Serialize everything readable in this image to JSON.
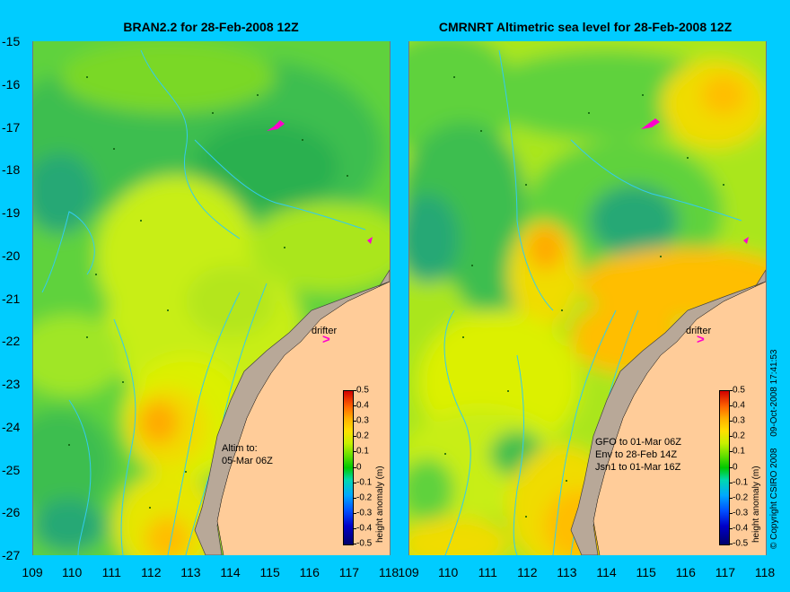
{
  "left_panel": {
    "title": "BRAN2.2 for 28-Feb-2008 12Z",
    "drifter_label": "drifter",
    "altim_line1": "Altim to:",
    "altim_line2": "05-Mar 06Z"
  },
  "right_panel": {
    "title": "CMRNRT Altimetric sea level  for 28-Feb-2008 12Z",
    "drifter_label": "drifter",
    "sat_lines": [
      "GFO to 01-Mar 06Z",
      "Env to 28-Feb 14Z",
      "Jsn1 to 01-Mar 16Z"
    ]
  },
  "axes": {
    "lat_labels": [
      "-15",
      "-16",
      "-17",
      "-18",
      "-19",
      "-20",
      "-21",
      "-22",
      "-23",
      "-24",
      "-25",
      "-26",
      "-27"
    ],
    "lon_labels": [
      "109",
      "110",
      "111",
      "112",
      "113",
      "114",
      "115",
      "116",
      "117",
      "118"
    ]
  },
  "colorbar": {
    "unit_label": "height anomaly (m)",
    "ticks": [
      "0.5",
      "0.4",
      "0.3",
      "0.2",
      "0.1",
      "0",
      "-0.1",
      "-0.2",
      "-0.3",
      "-0.4",
      "-0.5"
    ]
  },
  "side_note": {
    "copyright": "© Copyright CSIRO 2008",
    "timestamp": "09-Oct-2008 17:41:53"
  },
  "colors": {
    "background": "#00ccff",
    "land": "#ffcc99",
    "coastline_fill": "#b8a898",
    "bathymetry_contour": "#33ccee",
    "drifter": "#ff00cc"
  }
}
